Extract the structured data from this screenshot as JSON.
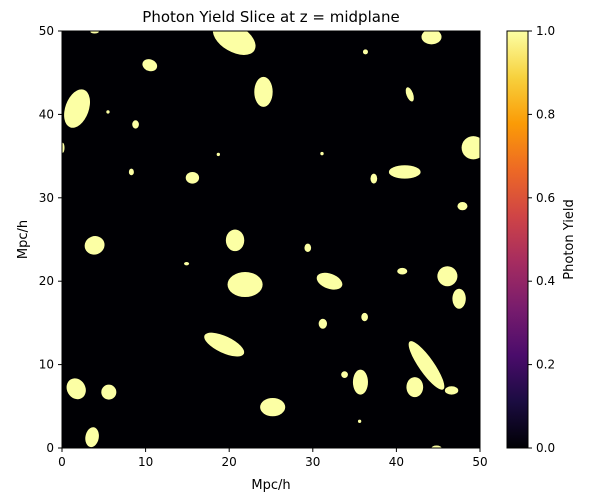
{
  "chart_data": {
    "type": "heatmap",
    "title": "Photon Yield Slice at z = midplane",
    "xlabel": "Mpc/h",
    "ylabel": "Mpc/h",
    "xlim": [
      0,
      50
    ],
    "ylim": [
      0,
      50
    ],
    "x_ticks": [
      "0",
      "10",
      "20",
      "30",
      "40",
      "50"
    ],
    "x_tick_values": [
      0,
      10,
      20,
      30,
      40,
      50
    ],
    "y_ticks": [
      "0",
      "10",
      "20",
      "30",
      "40",
      "50"
    ],
    "y_tick_values": [
      0,
      10,
      20,
      30,
      40,
      50
    ],
    "colorbar": {
      "label": "Photon Yield",
      "colormap": "inferno",
      "range": [
        0,
        1
      ],
      "ticks": [
        "0.0",
        "0.2",
        "0.4",
        "0.6",
        "0.8",
        "1.0"
      ],
      "tick_values": [
        0.0,
        0.2,
        0.4,
        0.6,
        0.8,
        1.0
      ],
      "stops": [
        "#000004",
        "#1b0c41",
        "#4a0c6b",
        "#781c6d",
        "#a52c60",
        "#cf4446",
        "#ed6925",
        "#fb9b06",
        "#f7d13d",
        "#fcffa4"
      ]
    },
    "background_value": 0,
    "background_color": "#000004",
    "region_value": 1,
    "region_color": "#fcffa4",
    "regions": [
      {
        "x": 1.7,
        "y": 7.1,
        "rx": 1.1,
        "ry": 1.3,
        "rot": 30
      },
      {
        "x": 5.6,
        "y": 6.7,
        "rx": 0.9,
        "ry": 0.9,
        "rot": 0
      },
      {
        "x": 3.6,
        "y": 1.3,
        "rx": 0.8,
        "ry": 1.2,
        "rot": -10
      },
      {
        "x": 3.9,
        "y": 24.3,
        "rx": 1.2,
        "ry": 1.1,
        "rot": 20
      },
      {
        "x": 1.8,
        "y": 40.7,
        "rx": 1.4,
        "ry": 2.4,
        "rot": -20
      },
      {
        "x": 3.9,
        "y": 49.9,
        "rx": 0.5,
        "ry": 0.2,
        "rot": 0
      },
      {
        "x": 8.8,
        "y": 38.8,
        "rx": 0.4,
        "ry": 0.5,
        "rot": 0
      },
      {
        "x": 5.5,
        "y": 40.3,
        "rx": 0.2,
        "ry": 0.2,
        "rot": 0
      },
      {
        "x": 10.5,
        "y": 45.9,
        "rx": 0.9,
        "ry": 0.7,
        "rot": -20
      },
      {
        "x": 8.3,
        "y": 33.1,
        "rx": 0.3,
        "ry": 0.4,
        "rot": 0
      },
      {
        "x": 15.6,
        "y": 32.4,
        "rx": 0.8,
        "ry": 0.7,
        "rot": 0
      },
      {
        "x": 18.7,
        "y": 35.2,
        "rx": 0.2,
        "ry": 0.2,
        "rot": 0
      },
      {
        "x": 19.4,
        "y": 12.4,
        "rx": 2.6,
        "ry": 1.0,
        "rot": -25
      },
      {
        "x": 14.9,
        "y": 22.1,
        "rx": 0.3,
        "ry": 0.2,
        "rot": 0
      },
      {
        "x": 20.6,
        "y": 49.1,
        "rx": 2.8,
        "ry": 1.6,
        "rot": -30
      },
      {
        "x": 20.7,
        "y": 24.9,
        "rx": 1.1,
        "ry": 1.3,
        "rot": 0
      },
      {
        "x": 21.9,
        "y": 19.6,
        "rx": 2.1,
        "ry": 1.5,
        "rot": 0
      },
      {
        "x": 24.1,
        "y": 42.7,
        "rx": 1.1,
        "ry": 1.8,
        "rot": 0
      },
      {
        "x": 25.2,
        "y": 4.9,
        "rx": 1.5,
        "ry": 1.1,
        "rot": 0
      },
      {
        "x": 29.4,
        "y": 24.0,
        "rx": 0.4,
        "ry": 0.5,
        "rot": 0
      },
      {
        "x": 31.1,
        "y": 35.3,
        "rx": 0.2,
        "ry": 0.2,
        "rot": 0
      },
      {
        "x": 31.2,
        "y": 14.9,
        "rx": 0.5,
        "ry": 0.6,
        "rot": 0
      },
      {
        "x": 32.0,
        "y": 20.0,
        "rx": 1.6,
        "ry": 0.9,
        "rot": -20
      },
      {
        "x": 33.8,
        "y": 8.8,
        "rx": 0.4,
        "ry": 0.4,
        "rot": 0
      },
      {
        "x": 35.7,
        "y": 7.9,
        "rx": 0.9,
        "ry": 1.5,
        "rot": 0
      },
      {
        "x": 36.2,
        "y": 15.7,
        "rx": 0.4,
        "ry": 0.5,
        "rot": 0
      },
      {
        "x": 36.3,
        "y": 47.5,
        "rx": 0.3,
        "ry": 0.3,
        "rot": 0
      },
      {
        "x": 37.3,
        "y": 32.3,
        "rx": 0.4,
        "ry": 0.6,
        "rot": 0
      },
      {
        "x": 35.6,
        "y": 3.2,
        "rx": 0.2,
        "ry": 0.2,
        "rot": 0
      },
      {
        "x": 41.0,
        "y": 33.1,
        "rx": 1.9,
        "ry": 0.8,
        "rot": 0
      },
      {
        "x": 40.7,
        "y": 21.2,
        "rx": 0.6,
        "ry": 0.4,
        "rot": 0
      },
      {
        "x": 41.6,
        "y": 42.4,
        "rx": 0.4,
        "ry": 0.9,
        "rot": 20
      },
      {
        "x": 42.2,
        "y": 7.3,
        "rx": 1.0,
        "ry": 1.2,
        "rot": 0
      },
      {
        "x": 43.6,
        "y": 9.9,
        "rx": 0.9,
        "ry": 3.5,
        "rot": 35
      },
      {
        "x": 44.2,
        "y": 49.3,
        "rx": 1.2,
        "ry": 0.9,
        "rot": 0
      },
      {
        "x": 44.8,
        "y": 0.0,
        "rx": 0.6,
        "ry": 0.3,
        "rot": 0
      },
      {
        "x": 46.1,
        "y": 20.6,
        "rx": 1.2,
        "ry": 1.2,
        "rot": 0
      },
      {
        "x": 46.6,
        "y": 6.9,
        "rx": 0.8,
        "ry": 0.5,
        "rot": 0
      },
      {
        "x": 47.5,
        "y": 17.9,
        "rx": 0.8,
        "ry": 1.2,
        "rot": 0
      },
      {
        "x": 47.9,
        "y": 29.0,
        "rx": 0.6,
        "ry": 0.5,
        "rot": 0
      },
      {
        "x": 49.2,
        "y": 36.0,
        "rx": 1.4,
        "ry": 1.4,
        "rot": 0
      },
      {
        "x": 0.1,
        "y": 36.0,
        "rx": 0.2,
        "ry": 0.6,
        "rot": 0
      }
    ]
  }
}
